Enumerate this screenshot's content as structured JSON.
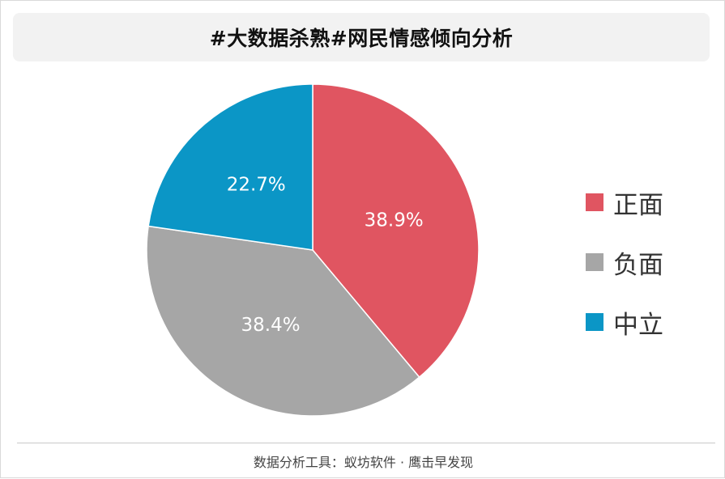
{
  "title": "#大数据杀熟#网民情感倾向分析",
  "footer": "数据分析工具：蚁坊软件 · 鹰击早发现",
  "chart_data": {
    "type": "pie",
    "title": "#大数据杀熟#网民情感倾向分析",
    "legend_position": "right",
    "slices": [
      {
        "label": "正面",
        "value": 38.9,
        "value_label": "38.9%",
        "color": "#e05561"
      },
      {
        "label": "负面",
        "value": 38.4,
        "value_label": "38.4%",
        "color": "#a6a6a6"
      },
      {
        "label": "中立",
        "value": 22.7,
        "value_label": "22.7%",
        "color": "#0b96c6"
      }
    ]
  }
}
